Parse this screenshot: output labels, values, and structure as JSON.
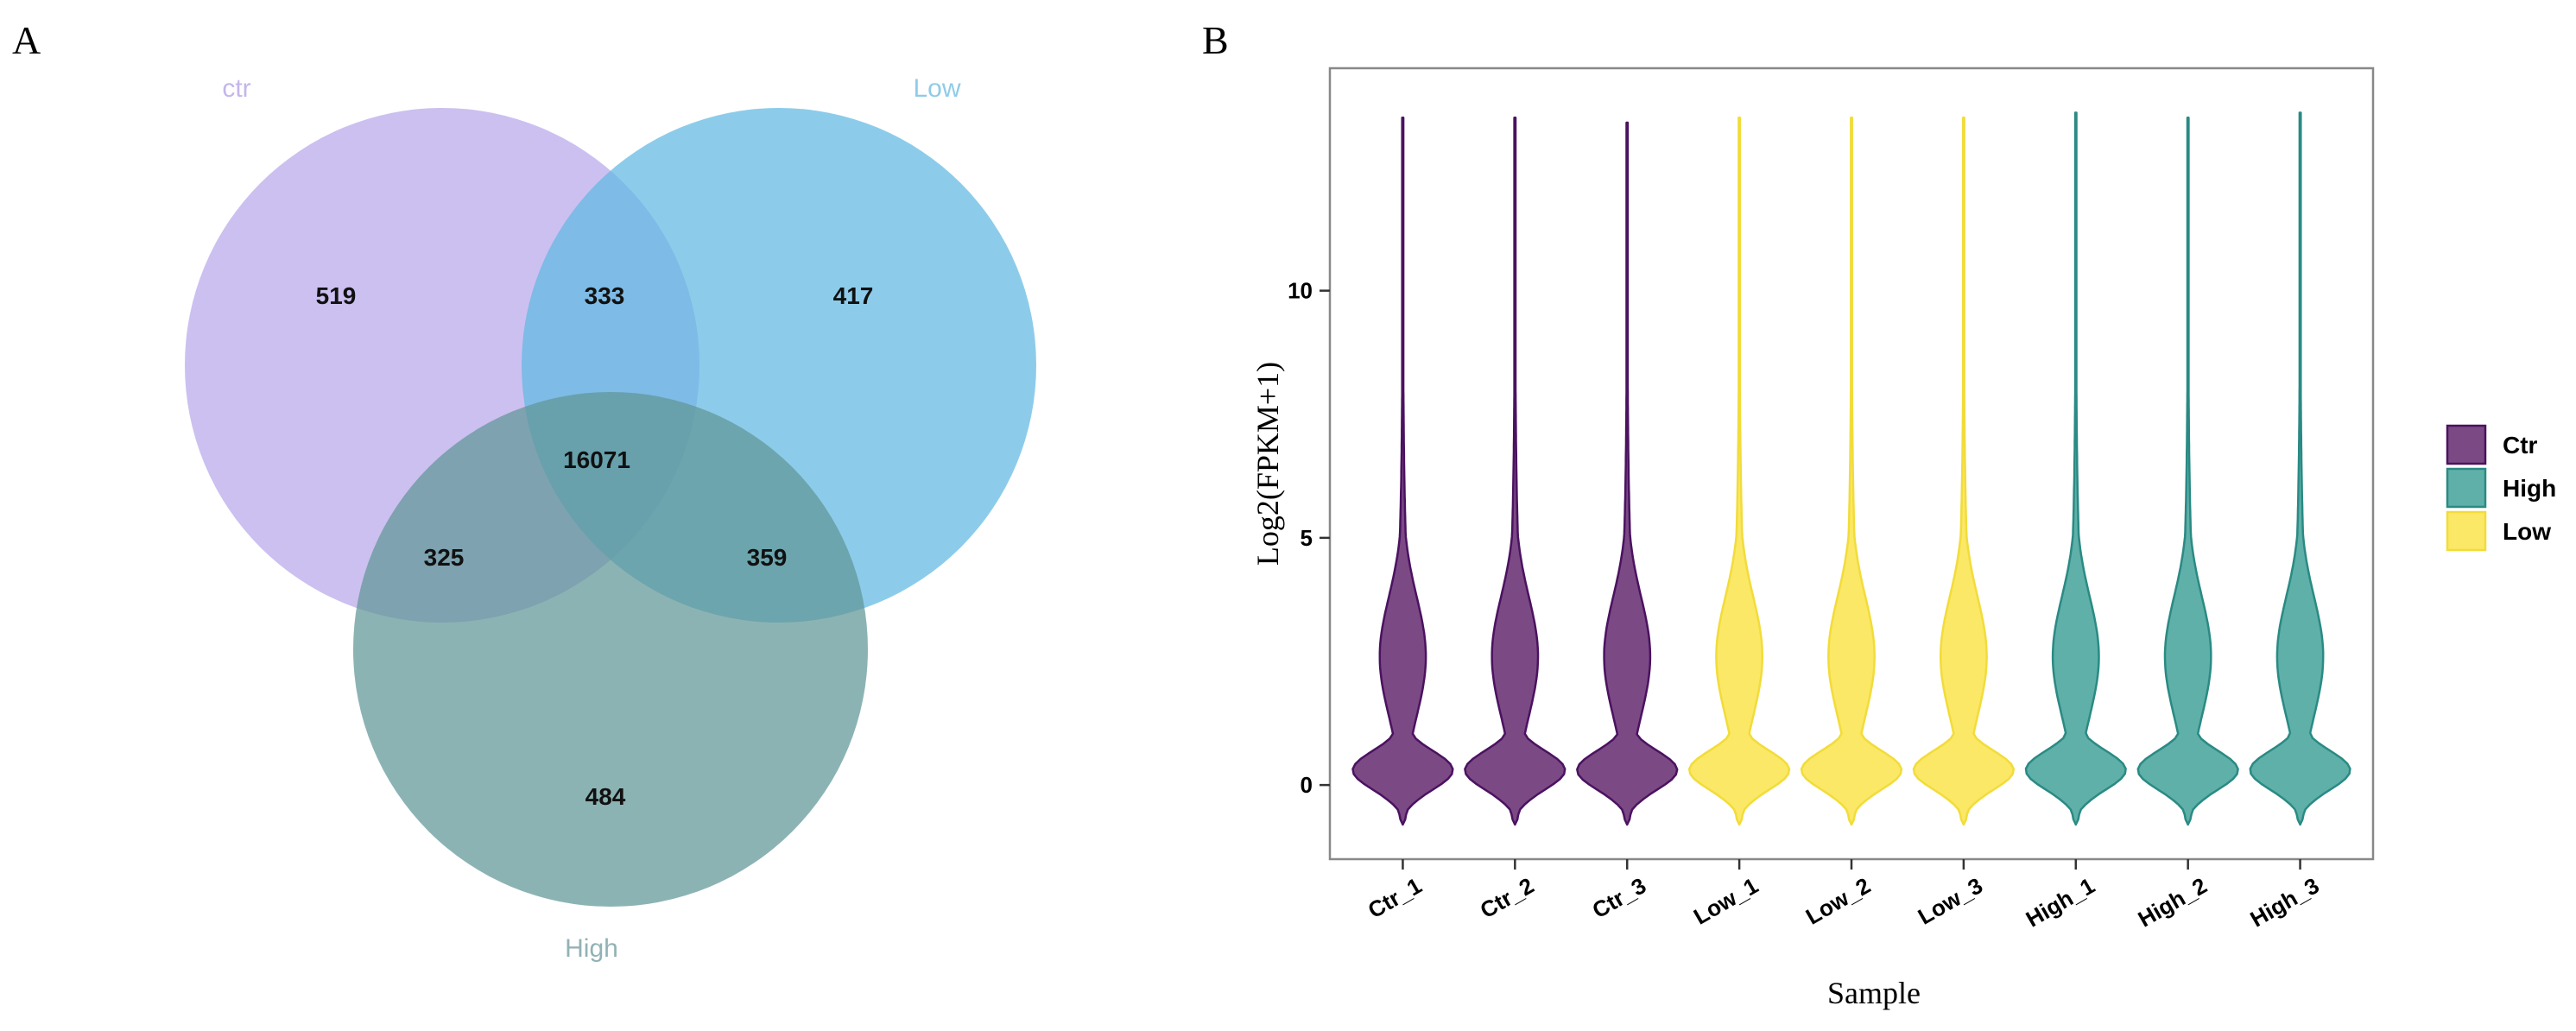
{
  "panels": {
    "a_letter": "A",
    "b_letter": "B"
  },
  "chart_data": [
    {
      "type": "venn",
      "sets": [
        {
          "name": "ctr",
          "color": "#b9a7ea"
        },
        {
          "name": "Low",
          "color": "#5fb8e2"
        },
        {
          "name": "High",
          "color": "#5f9595"
        }
      ],
      "label_colors": {
        "ctr": "#c4b6ec",
        "Low": "#8fcbe8",
        "High": "#92b2b6"
      },
      "regions": [
        {
          "sets": [
            "ctr"
          ],
          "value": 519
        },
        {
          "sets": [
            "ctr",
            "Low"
          ],
          "value": 333
        },
        {
          "sets": [
            "Low"
          ],
          "value": 417
        },
        {
          "sets": [
            "ctr",
            "Low",
            "High"
          ],
          "value": 16071
        },
        {
          "sets": [
            "ctr",
            "High"
          ],
          "value": 325
        },
        {
          "sets": [
            "Low",
            "High"
          ],
          "value": 359
        },
        {
          "sets": [
            "High"
          ],
          "value": 484
        }
      ]
    },
    {
      "type": "violin",
      "xlabel": "Sample",
      "ylabel": "Log2(FPKM+1)",
      "ylim": [
        -1.5,
        14.5
      ],
      "yticks": [
        0,
        5,
        10
      ],
      "categories": [
        "Ctr_1",
        "Ctr_2",
        "Ctr_3",
        "Low_1",
        "Low_2",
        "Low_3",
        "High_1",
        "High_2",
        "High_3"
      ],
      "groups": [
        "Ctr",
        "Ctr",
        "Ctr",
        "Low",
        "Low",
        "Low",
        "High",
        "High",
        "High"
      ],
      "y_min": [
        -0.8,
        -0.8,
        -0.8,
        -0.8,
        -0.8,
        -0.8,
        -0.8,
        -0.8,
        -0.8
      ],
      "y_max": [
        13.5,
        13.5,
        13.4,
        13.5,
        13.5,
        13.5,
        13.6,
        13.5,
        13.6
      ],
      "legend": {
        "position": "right",
        "items": [
          {
            "name": "Ctr",
            "fill": "#7b4a85",
            "stroke": "#4b1260"
          },
          {
            "name": "High",
            "fill": "#5fb0a8",
            "stroke": "#2a8a84"
          },
          {
            "name": "Low",
            "fill": "#fbe866",
            "stroke": "#f2dc3a"
          }
        ]
      }
    }
  ]
}
